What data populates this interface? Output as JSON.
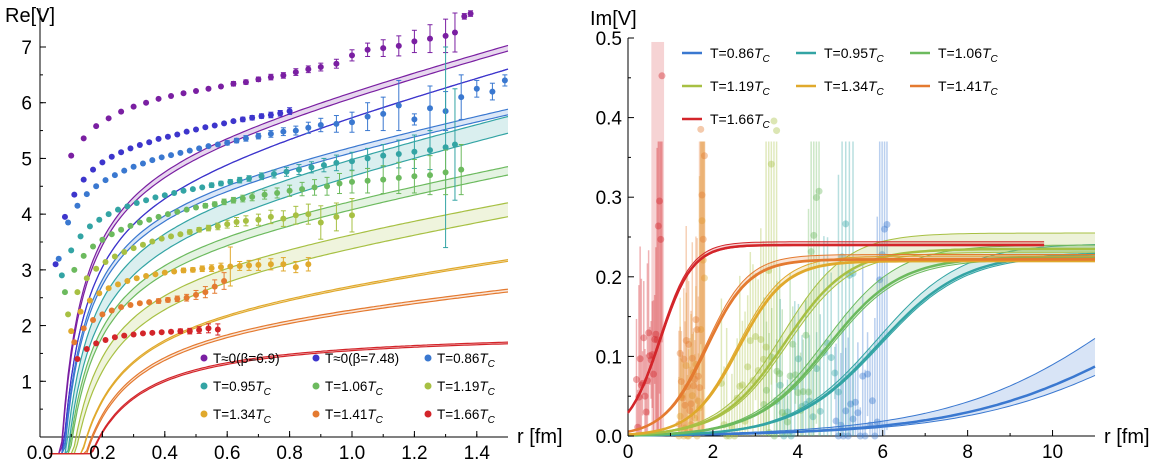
{
  "colors": {
    "T0_b69": "#7a1fa2",
    "T0_b748": "#3d35cc",
    "T086": "#3a78d0",
    "T095": "#33a4a4",
    "T106": "#6cba5e",
    "T119": "#a7c043",
    "T134": "#e0a92c",
    "T141": "#e47a30",
    "T166": "#d3252a"
  },
  "chart_data": [
    {
      "type": "scatter",
      "title": "",
      "xlabel": "r [fm]",
      "ylabel": "Re[V]",
      "xlim": [
        0,
        1.5
      ],
      "ylim": [
        0,
        7.7
      ],
      "xticks": [
        "0.0",
        "0.2",
        "0.4",
        "0.6",
        "0.8",
        "1.0",
        "1.2",
        "1.4"
      ],
      "yticks": [
        "1",
        "2",
        "3",
        "4",
        "5",
        "6",
        "7"
      ],
      "legend_position": "bottom-right",
      "grid": false,
      "series": [
        {
          "name": "T≈0(β=6.9)",
          "color_key": "T0_b69",
          "model": {
            "A": 0.37,
            "sigma": 1.45,
            "c": 5.0,
            "c_hi": 5.1
          },
          "x": [
            0.1,
            0.14,
            0.18,
            0.22,
            0.26,
            0.3,
            0.34,
            0.38,
            0.42,
            0.46,
            0.5,
            0.54,
            0.58,
            0.62,
            0.66,
            0.7,
            0.74,
            0.78,
            0.82,
            0.86,
            0.9,
            0.95,
            1.0,
            1.05,
            1.1,
            1.15,
            1.2,
            1.25,
            1.3,
            1.33,
            1.36,
            1.38
          ],
          "y": [
            5.05,
            5.36,
            5.58,
            5.72,
            5.84,
            5.93,
            6.0,
            6.07,
            6.12,
            6.17,
            6.21,
            6.25,
            6.29,
            6.34,
            6.37,
            6.42,
            6.46,
            6.49,
            6.55,
            6.6,
            6.64,
            6.7,
            6.85,
            6.95,
            6.98,
            7.02,
            7.1,
            7.15,
            7.2,
            7.26,
            7.55,
            7.6
          ],
          "err": [
            0.02,
            0.02,
            0.02,
            0.02,
            0.02,
            0.02,
            0.02,
            0.02,
            0.02,
            0.03,
            0.03,
            0.03,
            0.03,
            0.04,
            0.04,
            0.04,
            0.05,
            0.05,
            0.06,
            0.06,
            0.07,
            0.08,
            0.1,
            0.12,
            0.15,
            0.18,
            0.2,
            0.25,
            0.3,
            0.35,
            0.05,
            0.05
          ]
        },
        {
          "name": "T≈0(β=7.48)",
          "color_key": "T0_b748",
          "model": {
            "A": 0.37,
            "sigma": 1.5,
            "c": 4.6,
            "c_hi": 4.6
          },
          "x": [
            0.05,
            0.08,
            0.11,
            0.14,
            0.17,
            0.2,
            0.23,
            0.26,
            0.29,
            0.32,
            0.35,
            0.38,
            0.41,
            0.44,
            0.47,
            0.5,
            0.53,
            0.56,
            0.59,
            0.62,
            0.65,
            0.68,
            0.71,
            0.74,
            0.77,
            0.8
          ],
          "y": [
            3.1,
            3.95,
            4.35,
            4.62,
            4.8,
            4.93,
            5.03,
            5.11,
            5.18,
            5.24,
            5.29,
            5.35,
            5.39,
            5.43,
            5.48,
            5.52,
            5.56,
            5.59,
            5.63,
            5.67,
            5.7,
            5.73,
            5.76,
            5.78,
            5.81,
            5.85
          ],
          "err": [
            0.02,
            0.02,
            0.02,
            0.02,
            0.02,
            0.02,
            0.02,
            0.02,
            0.02,
            0.02,
            0.02,
            0.02,
            0.02,
            0.02,
            0.02,
            0.03,
            0.03,
            0.03,
            0.03,
            0.03,
            0.04,
            0.04,
            0.04,
            0.05,
            0.05,
            0.06
          ]
        },
        {
          "name": "T=0.86T_C",
          "color_key": "T086",
          "model": {
            "A": 0.37,
            "sigma": 1.12,
            "c": 4.35,
            "c_hi": 4.45
          },
          "x": [
            0.06,
            0.09,
            0.12,
            0.15,
            0.18,
            0.21,
            0.24,
            0.27,
            0.3,
            0.33,
            0.36,
            0.39,
            0.42,
            0.45,
            0.48,
            0.51,
            0.54,
            0.57,
            0.6,
            0.63,
            0.66,
            0.7,
            0.74,
            0.78,
            0.82,
            0.86,
            0.9,
            0.95,
            1.0,
            1.05,
            1.1,
            1.15,
            1.2,
            1.25,
            1.3,
            1.35,
            1.4,
            1.45,
            1.49
          ],
          "y": [
            3.2,
            3.85,
            4.15,
            4.36,
            4.5,
            4.61,
            4.7,
            4.78,
            4.85,
            4.91,
            4.97,
            5.02,
            5.06,
            5.1,
            5.14,
            5.18,
            5.22,
            5.25,
            5.28,
            5.32,
            5.36,
            5.4,
            5.44,
            5.48,
            5.5,
            5.55,
            5.6,
            5.62,
            5.65,
            5.75,
            5.8,
            5.95,
            5.7,
            5.9,
            5.85,
            6.1,
            6.25,
            6.2,
            6.4
          ],
          "err": [
            0.02,
            0.02,
            0.02,
            0.02,
            0.02,
            0.02,
            0.02,
            0.02,
            0.02,
            0.02,
            0.02,
            0.02,
            0.02,
            0.02,
            0.03,
            0.03,
            0.03,
            0.03,
            0.04,
            0.04,
            0.05,
            0.05,
            0.06,
            0.07,
            0.08,
            0.1,
            0.12,
            0.15,
            0.18,
            0.25,
            0.3,
            0.45,
            0.1,
            0.4,
            0.35,
            0.4,
            0.15,
            0.15,
            0.1
          ]
        },
        {
          "name": "T=0.95T_C",
          "color_key": "T095",
          "model": {
            "A": 0.37,
            "sigma": 1.3,
            "c": 3.75,
            "c_hi": 4.05
          },
          "x": [
            0.07,
            0.1,
            0.13,
            0.16,
            0.19,
            0.22,
            0.25,
            0.28,
            0.31,
            0.34,
            0.37,
            0.4,
            0.43,
            0.46,
            0.49,
            0.52,
            0.55,
            0.58,
            0.61,
            0.64,
            0.67,
            0.71,
            0.75,
            0.79,
            0.83,
            0.87,
            0.91,
            0.95,
            1.0,
            1.05,
            1.1,
            1.15,
            1.2,
            1.25,
            1.3,
            1.33
          ],
          "y": [
            2.9,
            3.35,
            3.6,
            3.78,
            3.9,
            4.0,
            4.08,
            4.14,
            4.2,
            4.25,
            4.3,
            4.34,
            4.38,
            4.42,
            4.45,
            4.48,
            4.52,
            4.55,
            4.58,
            4.61,
            4.64,
            4.68,
            4.72,
            4.76,
            4.8,
            4.84,
            4.88,
            4.92,
            4.95,
            5.0,
            5.05,
            5.08,
            5.12,
            5.15,
            5.2,
            5.25
          ],
          "err": [
            0.02,
            0.02,
            0.02,
            0.02,
            0.02,
            0.02,
            0.02,
            0.02,
            0.02,
            0.02,
            0.02,
            0.02,
            0.03,
            0.03,
            0.03,
            0.03,
            0.04,
            0.04,
            0.04,
            0.05,
            0.05,
            0.06,
            0.07,
            0.08,
            0.09,
            0.1,
            0.12,
            0.14,
            0.16,
            0.18,
            0.2,
            0.25,
            0.3,
            0.35,
            1.8,
            1.0
          ]
        },
        {
          "name": "T=1.06T_C",
          "color_key": "T106",
          "model": {
            "A": 0.37,
            "sigma": 1.0,
            "c": 3.45,
            "c_hi": 3.6
          },
          "x": [
            0.08,
            0.11,
            0.14,
            0.17,
            0.2,
            0.23,
            0.26,
            0.29,
            0.32,
            0.35,
            0.38,
            0.41,
            0.44,
            0.47,
            0.5,
            0.53,
            0.56,
            0.59,
            0.62,
            0.65,
            0.68,
            0.72,
            0.76,
            0.8,
            0.84,
            0.88,
            0.92,
            0.96,
            1.0,
            1.05,
            1.1,
            1.15,
            1.2,
            1.25,
            1.3,
            1.35
          ],
          "y": [
            2.6,
            3.0,
            3.25,
            3.42,
            3.54,
            3.64,
            3.72,
            3.79,
            3.85,
            3.9,
            3.95,
            4.0,
            4.04,
            4.08,
            4.12,
            4.15,
            4.18,
            4.22,
            4.25,
            4.28,
            4.31,
            4.35,
            4.38,
            4.42,
            4.45,
            4.48,
            4.5,
            4.55,
            4.58,
            4.6,
            4.62,
            4.65,
            4.68,
            4.7,
            4.75,
            4.8
          ],
          "err": [
            0.02,
            0.02,
            0.02,
            0.02,
            0.02,
            0.02,
            0.02,
            0.02,
            0.02,
            0.02,
            0.02,
            0.02,
            0.03,
            0.03,
            0.03,
            0.04,
            0.04,
            0.05,
            0.05,
            0.06,
            0.07,
            0.08,
            0.09,
            0.1,
            0.12,
            0.14,
            0.16,
            0.18,
            0.2,
            0.22,
            0.25,
            0.28,
            0.3,
            0.35,
            0.4,
            0.45
          ]
        },
        {
          "name": "T=1.19T_C",
          "color_key": "T119",
          "model": {
            "A": 0.37,
            "sigma": 0.9,
            "c": 2.85,
            "c_hi": 3.1
          },
          "x": [
            0.09,
            0.12,
            0.15,
            0.18,
            0.21,
            0.24,
            0.27,
            0.3,
            0.33,
            0.36,
            0.39,
            0.42,
            0.45,
            0.48,
            0.51,
            0.54,
            0.57,
            0.6,
            0.63,
            0.66,
            0.7,
            0.74,
            0.78,
            0.82,
            0.86,
            0.9,
            0.95,
            1.0
          ],
          "y": [
            2.2,
            2.6,
            2.85,
            3.02,
            3.14,
            3.24,
            3.32,
            3.39,
            3.45,
            3.51,
            3.56,
            3.6,
            3.64,
            3.68,
            3.72,
            3.75,
            3.78,
            3.82,
            3.86,
            3.88,
            3.9,
            3.95,
            3.92,
            3.98,
            4.0,
            3.85,
            3.95,
            3.98
          ],
          "err": [
            0.02,
            0.02,
            0.02,
            0.02,
            0.02,
            0.02,
            0.02,
            0.02,
            0.02,
            0.02,
            0.03,
            0.03,
            0.03,
            0.04,
            0.04,
            0.05,
            0.06,
            0.07,
            0.08,
            0.09,
            0.1,
            0.12,
            0.14,
            0.16,
            0.18,
            0.3,
            0.25,
            0.3
          ]
        },
        {
          "name": "T=1.34T_C",
          "color_key": "T134",
          "model": {
            "A": 0.37,
            "sigma": 0.7,
            "c": 2.35,
            "c_hi": 2.38
          },
          "x": [
            0.1,
            0.13,
            0.16,
            0.19,
            0.22,
            0.25,
            0.28,
            0.31,
            0.34,
            0.37,
            0.4,
            0.43,
            0.46,
            0.49,
            0.52,
            0.55,
            0.58,
            0.61,
            0.64,
            0.67,
            0.7,
            0.74,
            0.78,
            0.82,
            0.86
          ],
          "y": [
            1.9,
            2.25,
            2.45,
            2.58,
            2.67,
            2.74,
            2.8,
            2.85,
            2.89,
            2.92,
            2.95,
            2.97,
            2.99,
            3.0,
            3.02,
            3.03,
            3.05,
            3.06,
            3.07,
            3.08,
            3.09,
            3.1,
            3.1,
            3.05,
            3.1
          ],
          "err": [
            0.02,
            0.02,
            0.02,
            0.02,
            0.02,
            0.02,
            0.02,
            0.02,
            0.02,
            0.03,
            0.03,
            0.03,
            0.04,
            0.04,
            0.05,
            0.06,
            0.07,
            0.35,
            0.08,
            0.09,
            0.1,
            0.1,
            0.12,
            0.1,
            0.12
          ]
        },
        {
          "name": "T=1.41T_C",
          "color_key": "T141",
          "model": {
            "A": 0.37,
            "sigma": 0.5,
            "c": 2.1,
            "c_hi": 2.15
          },
          "x": [
            0.11,
            0.14,
            0.17,
            0.2,
            0.23,
            0.26,
            0.29,
            0.32,
            0.35,
            0.38,
            0.41,
            0.44,
            0.47,
            0.5,
            0.53,
            0.56,
            0.59
          ],
          "y": [
            1.7,
            1.95,
            2.1,
            2.2,
            2.27,
            2.33,
            2.37,
            2.4,
            2.42,
            2.44,
            2.46,
            2.48,
            2.5,
            2.55,
            2.6,
            2.7,
            2.8
          ],
          "err": [
            0.02,
            0.02,
            0.02,
            0.02,
            0.02,
            0.02,
            0.03,
            0.03,
            0.03,
            0.04,
            0.04,
            0.05,
            0.06,
            0.08,
            0.1,
            0.12,
            0.15
          ]
        },
        {
          "name": "T=1.66T_C",
          "color_key": "T166",
          "model": {
            "A": 0.37,
            "sigma": 0.0,
            "c": 1.92,
            "c_hi": 1.95
          },
          "x": [
            0.12,
            0.15,
            0.18,
            0.21,
            0.24,
            0.27,
            0.3,
            0.33,
            0.36,
            0.39,
            0.42,
            0.45,
            0.48,
            0.51,
            0.54,
            0.57
          ],
          "y": [
            1.4,
            1.58,
            1.68,
            1.74,
            1.79,
            1.82,
            1.84,
            1.86,
            1.87,
            1.88,
            1.89,
            1.9,
            1.9,
            1.92,
            1.95,
            1.93
          ],
          "err": [
            0.02,
            0.02,
            0.02,
            0.02,
            0.02,
            0.02,
            0.02,
            0.02,
            0.03,
            0.03,
            0.03,
            0.04,
            0.05,
            0.06,
            0.08,
            0.1
          ]
        }
      ]
    },
    {
      "type": "line",
      "title": "",
      "xlabel": "r [fm]",
      "ylabel": "Im[V]",
      "xlim": [
        0,
        11
      ],
      "ylim": [
        0,
        0.5
      ],
      "xticks": [
        "0",
        "2",
        "4",
        "6",
        "8",
        "10"
      ],
      "yticks": [
        "0.0",
        "0.1",
        "0.2",
        "0.3",
        "0.4",
        "0.5"
      ],
      "legend_position": "top",
      "grid": false,
      "series": [
        {
          "name": "T=0.86T_C",
          "color_key": "T086",
          "curve": {
            "amp": 0.26,
            "r0": 12.5,
            "w": 2.2,
            "band": 0.08
          },
          "data_range": [
            4.9,
            6.1
          ]
        },
        {
          "name": "T=0.95T_C",
          "color_key": "T095",
          "curve": {
            "amp": 0.23,
            "r0": 5.9,
            "w": 1.0,
            "band": 0.012
          },
          "data_range": [
            3.5,
            5.3
          ]
        },
        {
          "name": "T=1.06T_C",
          "color_key": "T106",
          "curve": {
            "amp": 0.225,
            "r0": 4.7,
            "w": 0.85,
            "band": 0.015
          },
          "data_range": [
            3.2,
            4.5
          ]
        },
        {
          "name": "T=1.19T_C",
          "color_key": "T119",
          "curve": {
            "amp": 0.235,
            "r0": 3.7,
            "w": 0.75,
            "band": 0.02
          },
          "data_range": [
            2.2,
            3.5
          ]
        },
        {
          "name": "T=1.34T_C",
          "color_key": "T134",
          "curve": {
            "amp": 0.22,
            "r0": 2.6,
            "w": 0.55,
            "band": 0.006
          },
          "data_range": [
            1.2,
            1.8
          ]
        },
        {
          "name": "T=1.41T_C",
          "color_key": "T141",
          "curve": {
            "amp": 0.222,
            "r0": 1.85,
            "w": 0.5,
            "band": 0.006
          },
          "data_range": [
            1.2,
            1.8
          ]
        },
        {
          "name": "T=1.66T_C",
          "color_key": "T166",
          "curve": {
            "amp": 0.24,
            "r0": 0.75,
            "w": 0.38,
            "band": 0.004
          },
          "data_range": [
            0.2,
            0.8
          ],
          "curve_end": 9.8
        }
      ]
    }
  ]
}
